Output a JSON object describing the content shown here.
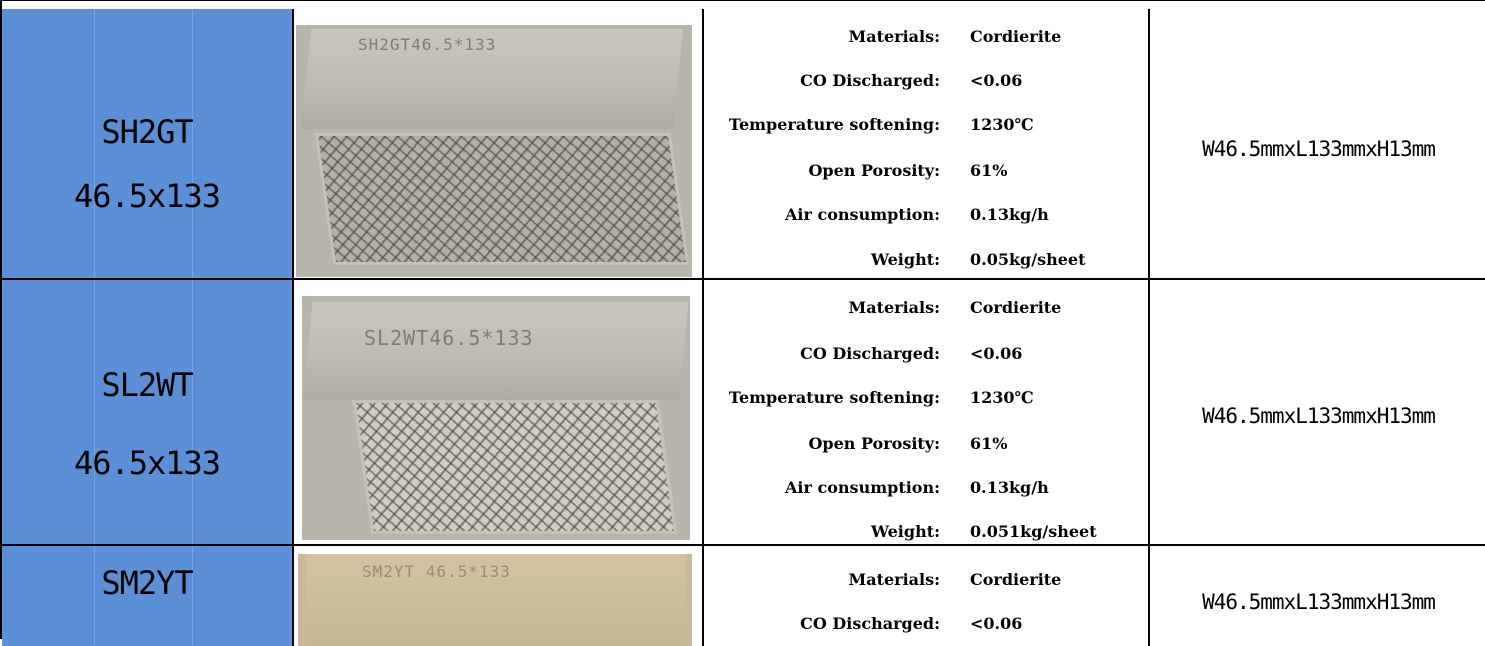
{
  "rows": [
    {
      "model": "SH2GT",
      "size": "46.5x133",
      "image_stamp": "SH2GT46.5*133",
      "specs": [
        {
          "label": "Materials:",
          "value": "Cordierite"
        },
        {
          "label": "CO Discharged:",
          "value": "<0.06"
        },
        {
          "label": "Temperature softening:",
          "value": "1230℃"
        },
        {
          "label": "Open Porosity:",
          "value": "61%"
        },
        {
          "label": "Air  consumption:",
          "value": "0.13kg/h"
        },
        {
          "label": "Weight:",
          "value": "0.05kg/sheet"
        }
      ],
      "dimensions": "W46.5mmxL133mmxH13mm"
    },
    {
      "model": "SL2WT",
      "size": "46.5x133",
      "image_stamp": "SL2WT46.5*133",
      "specs": [
        {
          "label": "Materials:",
          "value": "Cordierite"
        },
        {
          "label": "CO Discharged:",
          "value": "<0.06"
        },
        {
          "label": "Temperature softening:",
          "value": "1230℃"
        },
        {
          "label": "Open Porosity:",
          "value": "61%"
        },
        {
          "label": "Air  consumption:",
          "value": "0.13kg/h"
        },
        {
          "label": "Weight:",
          "value": "0.051kg/sheet"
        }
      ],
      "dimensions": "W46.5mmxL133mmxH13mm"
    },
    {
      "model": "SM2YT",
      "image_stamp": "SM2YT 46.5*133",
      "specs": [
        {
          "label": "Materials:",
          "value": "Cordierite"
        },
        {
          "label": "CO Discharged:",
          "value": "<0.06"
        }
      ],
      "dimensions": "W46.5mmxL133mmxH13mm"
    }
  ],
  "colors": {
    "name_cell_bg": "#5b8fd6",
    "border": "#000000",
    "ceramic_tile": "#c9c6bb"
  }
}
